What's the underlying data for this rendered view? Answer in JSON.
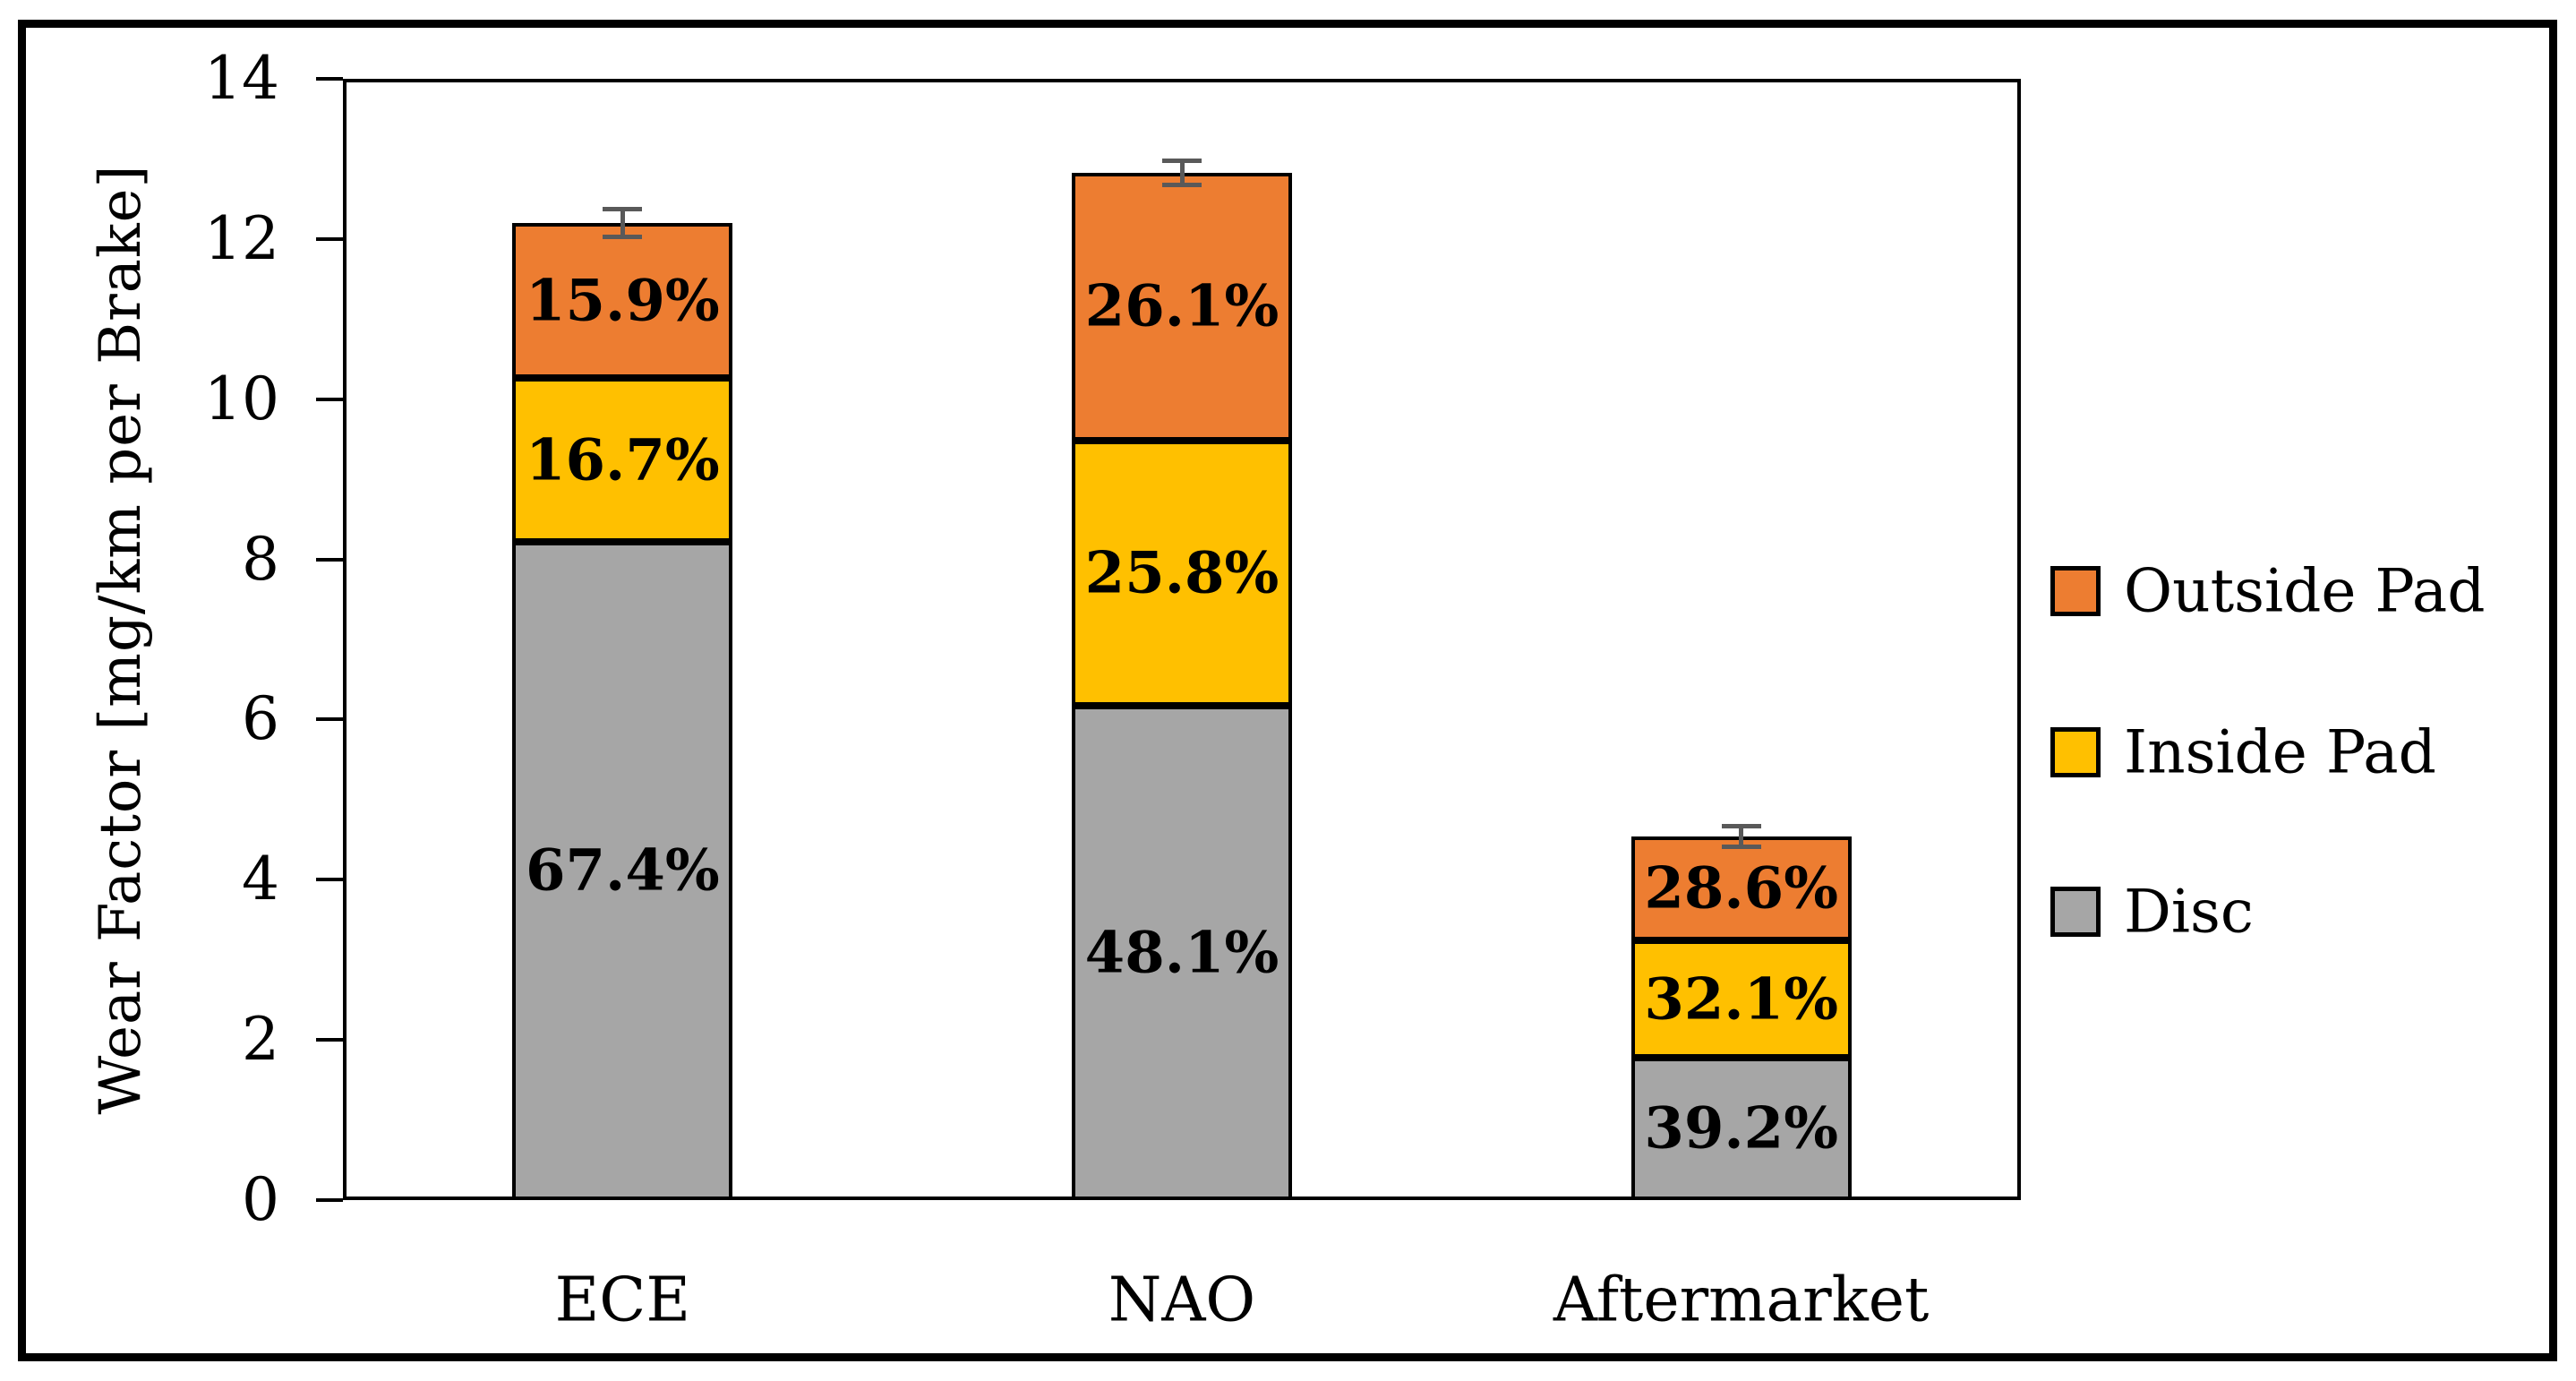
{
  "figure": {
    "ylabel": "Wear Factor [mg/km per Brake]"
  },
  "chart_data": {
    "type": "bar",
    "stacked": true,
    "title": "",
    "xlabel": "",
    "ylabel": "Wear Factor [mg/km per Brake]",
    "ylim": [
      0,
      14
    ],
    "yticks": [
      0,
      2,
      4,
      6,
      8,
      10,
      12,
      14
    ],
    "grid": false,
    "legend_position": "right-middle",
    "categories": [
      "ECE",
      "NAO",
      "Aftermarket"
    ],
    "series": [
      {
        "name": "Disc",
        "color": "#A6A6A6",
        "values": [
          8.22,
          6.17,
          1.78
        ],
        "percent_labels": [
          "67.4%",
          "48.1%",
          "39.2%"
        ]
      },
      {
        "name": "Inside Pad",
        "color": "#FFC000",
        "values": [
          2.04,
          3.31,
          1.46
        ],
        "percent_labels": [
          "16.7%",
          "25.8%",
          "32.1%"
        ]
      },
      {
        "name": "Outside Pad",
        "color": "#ED7D31",
        "values": [
          1.94,
          3.35,
          1.3
        ],
        "percent_labels": [
          "15.9%",
          "26.1%",
          "28.6%"
        ]
      }
    ],
    "totals": [
      12.2,
      12.83,
      4.54
    ],
    "error_bars_plus_minus": [
      0.17,
      0.15,
      0.13
    ],
    "bar_outline_color": "#000000",
    "error_bar_color": "#595959",
    "legend_order": [
      "Outside Pad",
      "Inside Pad",
      "Disc"
    ]
  }
}
